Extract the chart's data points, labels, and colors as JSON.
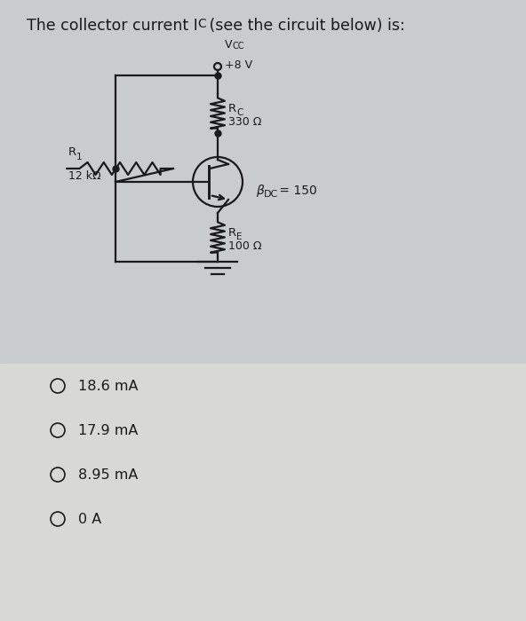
{
  "title_part1": "The collector current I",
  "title_sub": "C",
  "title_part2": " (see the circuit below) is:",
  "bg_top": "#c8cccc",
  "bg_bottom": "#d8d8d4",
  "vcc_label1": "V",
  "vcc_label2": "CC",
  "vcc_val": "+8 V",
  "rc_label": "R",
  "rc_sub": "C",
  "rc_val": "330 Ω",
  "r1_label": "R",
  "r1_sub": "1",
  "r1_val": "12 kΩ",
  "beta_label": "β",
  "beta_sub": "DC",
  "beta_val": " = 150",
  "re_label": "R",
  "re_sub": "E",
  "re_val": "100 Ω",
  "choices": [
    "18.6 mA",
    "17.9 mA",
    "8.95 mA",
    "0 A"
  ],
  "line_color": "#1a1a1a",
  "text_color": "#1a1a1a"
}
